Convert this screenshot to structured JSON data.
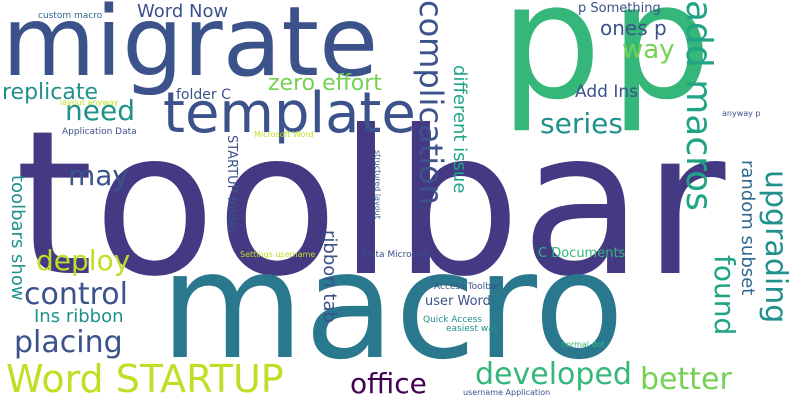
{
  "chart_data": {
    "type": "wordcloud",
    "words": [
      {
        "text": "toolbar",
        "color": "#443983"
      },
      {
        "text": "macro",
        "color": "#2a788e"
      },
      {
        "text": "p",
        "color": "#35b779"
      },
      {
        "text": "p",
        "color": "#35b779"
      },
      {
        "text": "migrate",
        "color": "#3b528b"
      },
      {
        "text": "template",
        "color": "#3b528b"
      },
      {
        "text": "Word STARTUP",
        "color": "#bddf26"
      },
      {
        "text": "add macros",
        "color": "#20a486"
      },
      {
        "text": "complication",
        "color": "#3b528b"
      },
      {
        "text": "upgrading",
        "color": "#21918c"
      },
      {
        "text": "developed",
        "color": "#35b779"
      },
      {
        "text": "better",
        "color": "#75d054"
      },
      {
        "text": "placing",
        "color": "#3b528b"
      },
      {
        "text": "control",
        "color": "#3b528b"
      },
      {
        "text": "office",
        "color": "#440154"
      },
      {
        "text": "found",
        "color": "#20a486"
      },
      {
        "text": "need",
        "color": "#21918c"
      },
      {
        "text": "series",
        "color": "#21918c"
      },
      {
        "text": "deploy",
        "color": "#bddf26"
      },
      {
        "text": "zero effort",
        "color": "#75d054"
      },
      {
        "text": "way",
        "color": "#75d054"
      },
      {
        "text": "may",
        "color": "#3b528b"
      },
      {
        "text": "replicate",
        "color": "#21918c"
      },
      {
        "text": "Word Now",
        "color": "#3b528b"
      },
      {
        "text": "ones p",
        "color": "#3b528b"
      },
      {
        "text": "random subset",
        "color": "#31688e"
      },
      {
        "text": "different issue",
        "color": "#20a486"
      },
      {
        "text": "toolbars show",
        "color": "#21918c"
      },
      {
        "text": "ribbon tab",
        "color": "#3b528b"
      },
      {
        "text": "Ins ribbon",
        "color": "#21918c"
      },
      {
        "text": "Add Ins",
        "color": "#3b528b"
      },
      {
        "text": "p Something",
        "color": "#3b528b"
      },
      {
        "text": "folder C",
        "color": "#3b528b"
      },
      {
        "text": "STARTUP folder",
        "color": "#3b528b"
      },
      {
        "text": "C Documents",
        "color": "#35b779"
      },
      {
        "text": "user Word",
        "color": "#3b528b"
      },
      {
        "text": "custom macro",
        "color": "#31688e"
      },
      {
        "text": "layout anyway",
        "color": "#bddf26"
      },
      {
        "text": "Application Data",
        "color": "#3b528b"
      },
      {
        "text": "Microsoft Word",
        "color": "#bddf26"
      },
      {
        "text": "structured layout",
        "color": "#31688e"
      },
      {
        "text": "Settings username",
        "color": "#bddf26"
      },
      {
        "text": "Data Microsoft",
        "color": "#3b528b"
      },
      {
        "text": "Access Toolbar",
        "color": "#3b528b"
      },
      {
        "text": "Quick Access",
        "color": "#21918c"
      },
      {
        "text": "easiest way",
        "color": "#21918c"
      },
      {
        "text": "normal dot",
        "color": "#35b779"
      },
      {
        "text": "username Application",
        "color": "#3b528b"
      },
      {
        "text": "anyway p",
        "color": "#3b528b"
      }
    ]
  }
}
